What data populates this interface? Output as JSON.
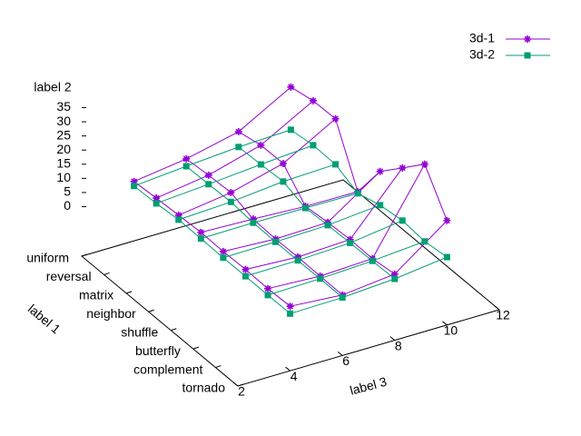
{
  "chart_data": {
    "type": "surface3d",
    "xlabel": "label 3",
    "ylabel": "label 1",
    "zlabel": "label 2",
    "categories": [
      "uniform",
      "reversal",
      "matrix",
      "neighbor",
      "shuffle",
      "butterfly",
      "complement",
      "tornado"
    ],
    "x": [
      4,
      6,
      8,
      10
    ],
    "xlim": [
      2,
      12
    ],
    "xticks": [
      2,
      4,
      6,
      8,
      10,
      12
    ],
    "zlim": [
      0,
      35
    ],
    "zticks": [
      0,
      5,
      10,
      15,
      20,
      25,
      30,
      35
    ],
    "legend": "top-right",
    "series": [
      {
        "name": "3d-1",
        "color": "#9400d3",
        "marker": "star",
        "values": [
          [
            3.5,
            6.1,
            10.3,
            20.7
          ],
          [
            4.2,
            6.9,
            12.1,
            22.4
          ],
          [
            4.7,
            7.3,
            12.2,
            22.6
          ],
          [
            5.2,
            4.5,
            3.6,
            3.4
          ],
          [
            5.0,
            4.0,
            4.5,
            17.1
          ],
          [
            5.2,
            4.2,
            5.0,
            24.9
          ],
          [
            5.0,
            4.0,
            4.8,
            32.8
          ],
          [
            5.3,
            3.9,
            5.9,
            19.4
          ]
        ]
      },
      {
        "name": "3d-2",
        "color": "#009e73",
        "marker": "square",
        "values": [
          [
            1.9,
            3.5,
            4.9,
            5.6
          ],
          [
            2.3,
            3.7,
            5.3,
            6.7
          ],
          [
            3.1,
            4.0,
            5.8,
            6.5
          ],
          [
            3.0,
            3.2,
            3.0,
            2.8
          ],
          [
            2.8,
            3.0,
            3.5,
            5.2
          ],
          [
            2.8,
            3.0,
            3.8,
            6.3
          ],
          [
            2.7,
            3.1,
            4.0,
            5.5
          ],
          [
            2.7,
            3.0,
            4.2,
            6.5
          ]
        ]
      }
    ]
  }
}
